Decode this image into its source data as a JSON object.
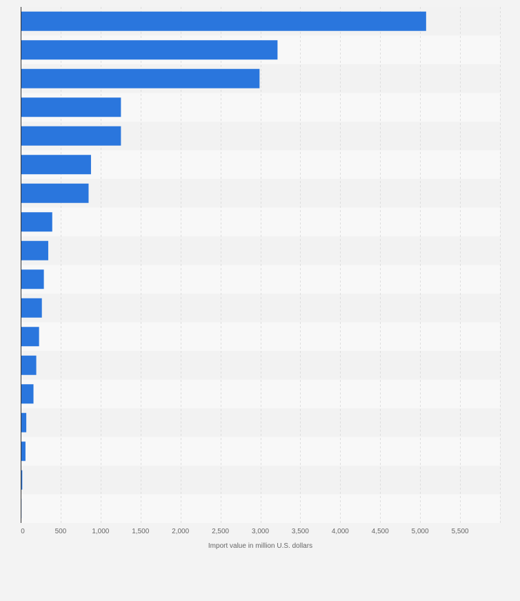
{
  "colors": {
    "page_background": "#f3f3f3",
    "plot_band_light": "#f8f8f8",
    "plot_band_dark": "#f2f2f2",
    "bar": "#2a76dd",
    "bar_stroke": "#2a76dd",
    "grid": "#dddddd",
    "axis_line": "#333333",
    "label": "#666666"
  },
  "chart_data": {
    "type": "bar",
    "orientation": "horizontal",
    "title": "",
    "xlabel": "Import value in million U.S. dollars",
    "ylabel": "",
    "xlim": [
      0,
      6000
    ],
    "x_ticks": [
      0,
      500,
      1000,
      1500,
      2000,
      2500,
      3000,
      3500,
      4000,
      4500,
      5000,
      5500
    ],
    "x_tick_labels": [
      "0",
      "500",
      "1,000",
      "1,500",
      "2,000",
      "2,500",
      "3,000",
      "3,500",
      "4,000",
      "4,500",
      "5,000",
      "5,500"
    ],
    "grid": true,
    "category_labels_visible": false,
    "values": [
      5075,
      3215,
      2990,
      1255,
      1255,
      880,
      850,
      395,
      345,
      290,
      265,
      230,
      195,
      160,
      70,
      60,
      20,
      10
    ]
  }
}
